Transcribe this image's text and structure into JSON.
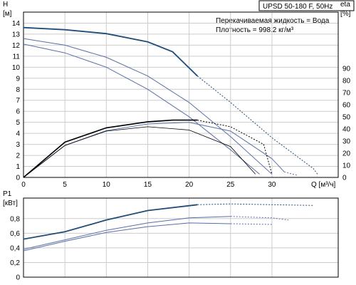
{
  "title": "UPSD 50-180 F, 50Hz",
  "info": {
    "liquid": "Перекачиваемая жидкость = Вода",
    "density": "Плотность = 998.2 кг/м³"
  },
  "colors": {
    "curve_strong": "#1f4e79",
    "curve_light": "#5b6fa6",
    "curve_black": "#000000",
    "grid": "#cccccc"
  },
  "chart_data": [
    {
      "type": "line",
      "name": "head-efficiency",
      "ylabel_left": [
        "H",
        "[м]"
      ],
      "ylabel_right": [
        "eta",
        "[%]"
      ],
      "xlabel": "Q [м³/ч]",
      "xlim": [
        0,
        38
      ],
      "ylim": [
        0,
        15
      ],
      "y2lim": [
        0,
        136.4
      ],
      "x_ticks": [
        0,
        5,
        10,
        15,
        20,
        25,
        30
      ],
      "y_ticks": [
        0,
        1,
        2,
        3,
        4,
        5,
        6,
        7,
        8,
        9,
        10,
        11,
        12,
        13,
        14
      ],
      "y2_ticks": [
        0,
        10,
        20,
        30,
        40,
        50,
        60,
        70,
        80,
        90
      ],
      "grid": true,
      "series": [
        {
          "axis": "left",
          "style": "strong",
          "solid": [
            [
              0,
              13.6
            ],
            [
              5,
              13.4
            ],
            [
              10,
              13.05
            ],
            [
              15,
              12.3
            ],
            [
              18,
              11.4
            ],
            [
              21,
              9.2
            ]
          ],
          "dashed": [
            [
              21,
              9.2
            ],
            [
              25,
              6.8
            ],
            [
              30,
              3.6
            ],
            [
              35,
              0.8
            ],
            [
              35.5,
              0.3
            ]
          ]
        },
        {
          "axis": "left",
          "style": "light",
          "solid": [
            [
              0,
              12.6
            ],
            [
              5,
              12.0
            ],
            [
              10,
              10.9
            ],
            [
              15,
              9.2
            ],
            [
              20,
              6.8
            ],
            [
              25,
              3.7
            ],
            [
              30,
              0.3
            ]
          ],
          "dashed": []
        },
        {
          "axis": "left",
          "style": "light",
          "solid": [
            [
              0,
              12.1
            ],
            [
              5,
              11.3
            ],
            [
              10,
              10.0
            ],
            [
              15,
              8.0
            ],
            [
              20,
              5.5
            ],
            [
              25,
              2.5
            ],
            [
              28.5,
              0.3
            ]
          ],
          "dashed": []
        },
        {
          "axis": "left",
          "style": "light",
          "solid": [
            [
              0,
              0
            ],
            [
              5,
              2.9
            ],
            [
              10,
              4.25
            ],
            [
              15,
              4.85
            ],
            [
              20,
              5.0
            ],
            [
              25,
              4.2
            ],
            [
              30,
              1.7
            ],
            [
              31.5,
              0.5
            ]
          ],
          "dashed": [
            [
              31.5,
              0.5
            ],
            [
              33,
              0.2
            ]
          ]
        },
        {
          "axis": "left",
          "style": "black",
          "solid": [
            [
              0,
              0
            ],
            [
              5,
              3.2
            ],
            [
              10,
              4.5
            ],
            [
              15,
              5.05
            ],
            [
              18,
              5.2
            ],
            [
              21,
              5.2
            ]
          ],
          "dashed": [
            [
              21,
              5.2
            ],
            [
              25,
              4.6
            ],
            [
              29,
              3.0
            ],
            [
              30,
              0.3
            ]
          ]
        },
        {
          "axis": "left",
          "style": "black-thin",
          "solid": [
            [
              0,
              0
            ],
            [
              5,
              2.9
            ],
            [
              10,
              4.2
            ],
            [
              15,
              4.6
            ],
            [
              20,
              4.3
            ],
            [
              25,
              2.8
            ],
            [
              28,
              0.3
            ]
          ],
          "dashed": []
        }
      ]
    },
    {
      "type": "line",
      "name": "power",
      "ylabel_left": [
        "P1",
        "[кВт]"
      ],
      "xlim": [
        0,
        38
      ],
      "ylim": [
        0,
        1.08
      ],
      "y_ticks": [
        0,
        0.2,
        0.4,
        0.6,
        0.8
      ],
      "y_tick_labels": [
        "0",
        "0,2",
        "0,4",
        "0,6",
        "0,8"
      ],
      "grid": true,
      "series": [
        {
          "style": "strong",
          "solid": [
            [
              0,
              0.52
            ],
            [
              5,
              0.62
            ],
            [
              10,
              0.78
            ],
            [
              15,
              0.91
            ],
            [
              21,
              0.99
            ]
          ],
          "dashed": [
            [
              21,
              0.99
            ],
            [
              25,
              1.0
            ],
            [
              30,
              0.99
            ],
            [
              35,
              0.98
            ]
          ]
        },
        {
          "style": "light",
          "solid": [
            [
              0,
              0.38
            ],
            [
              5,
              0.51
            ],
            [
              10,
              0.64
            ],
            [
              15,
              0.74
            ],
            [
              20,
              0.81
            ],
            [
              25,
              0.83
            ]
          ],
          "dashed": [
            [
              25,
              0.83
            ],
            [
              30,
              0.81
            ],
            [
              32,
              0.78
            ]
          ]
        },
        {
          "style": "light",
          "solid": [
            [
              0,
              0.36
            ],
            [
              5,
              0.49
            ],
            [
              10,
              0.61
            ],
            [
              15,
              0.69
            ],
            [
              20,
              0.74
            ],
            [
              25,
              0.73
            ]
          ],
          "dashed": [
            [
              25,
              0.73
            ],
            [
              30,
              0.72
            ]
          ]
        }
      ]
    }
  ]
}
